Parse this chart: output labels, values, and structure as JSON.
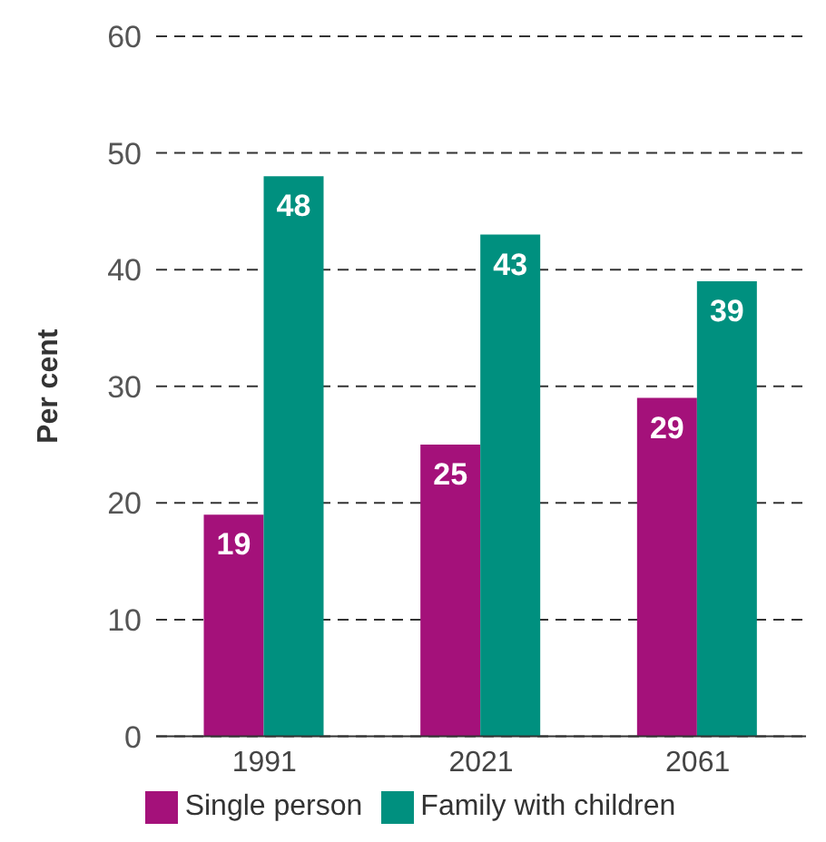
{
  "chart_data": {
    "type": "bar",
    "ylabel": "Per cent",
    "categories": [
      "1991",
      "2021",
      "2061"
    ],
    "series": [
      {
        "name": "Single person",
        "color": "#a4117a",
        "values": [
          19,
          25,
          29
        ]
      },
      {
        "name": "Family with children",
        "color": "#00907f",
        "values": [
          48,
          43,
          39
        ]
      }
    ],
    "ylim": [
      0,
      60
    ],
    "yticks": [
      0,
      10,
      20,
      30,
      40,
      50,
      60
    ],
    "grid": "y",
    "legend": "bottom",
    "data_labels": true
  }
}
